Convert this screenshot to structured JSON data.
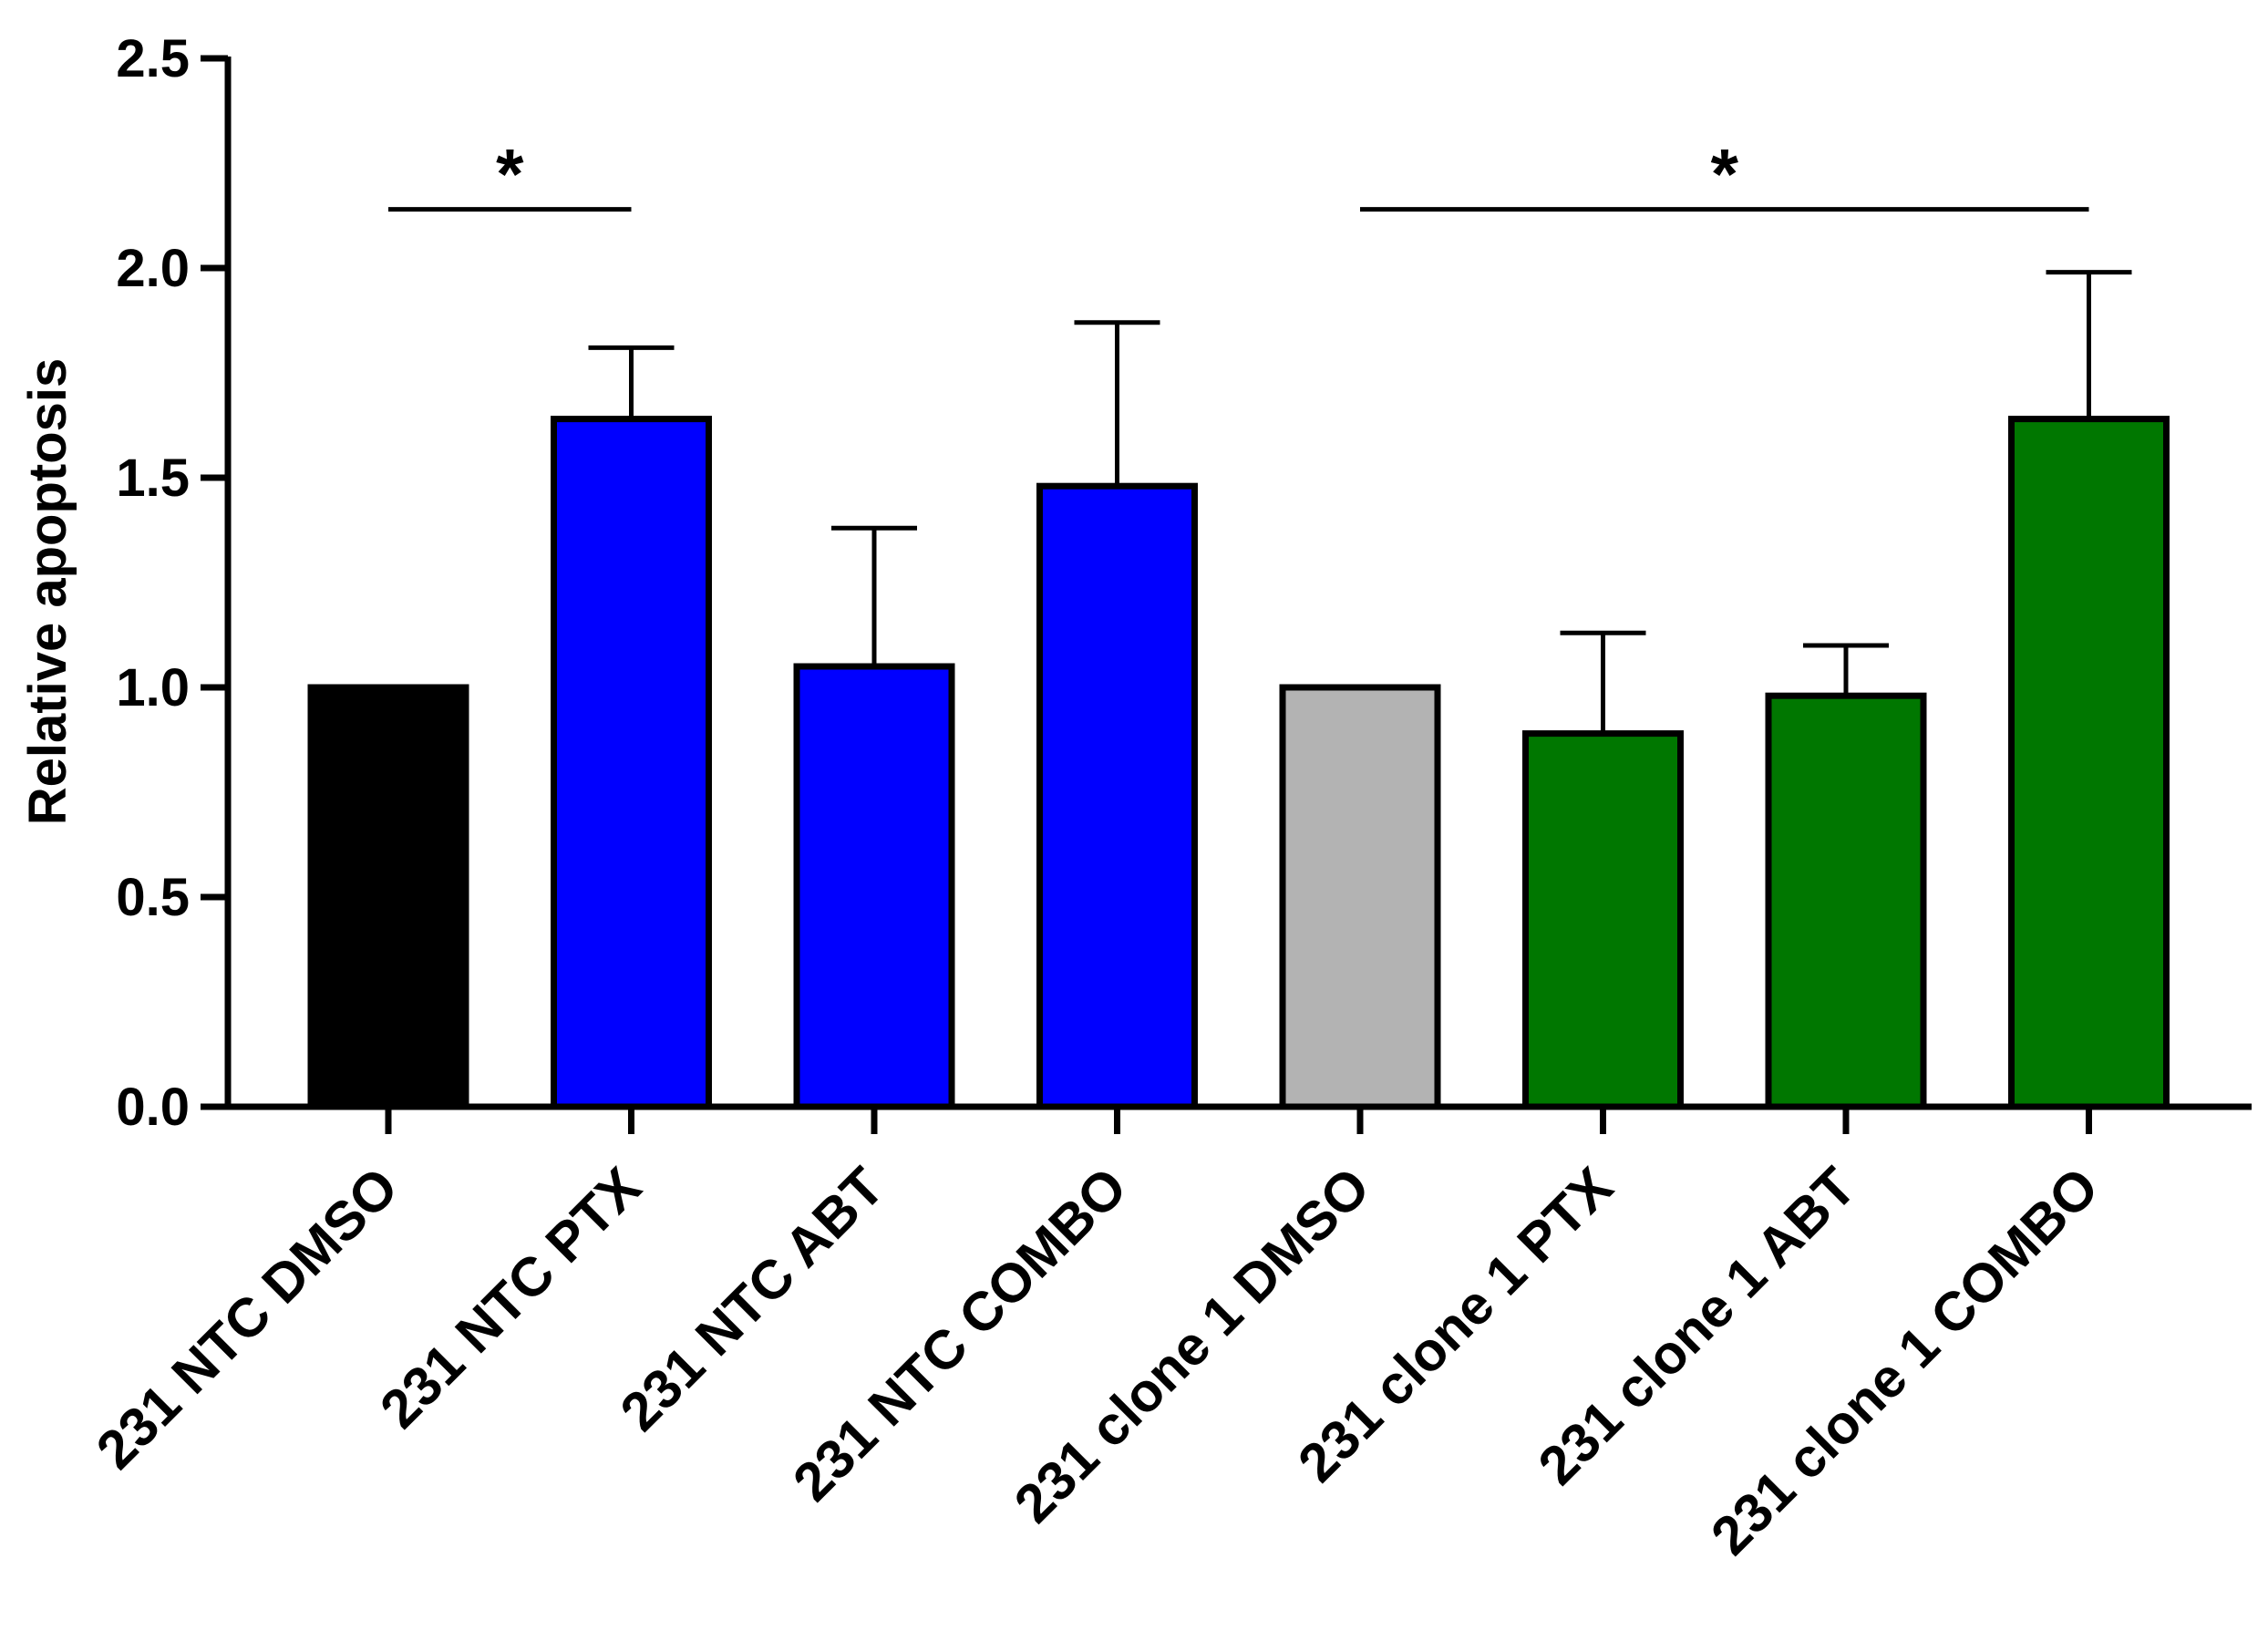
{
  "chart_data": {
    "type": "bar",
    "title": "",
    "xlabel": "",
    "ylabel": "Relative apoptosis",
    "ylim": [
      0,
      2.5
    ],
    "yticks": [
      0.0,
      0.5,
      1.0,
      1.5,
      2.0,
      2.5
    ],
    "ytick_labels": [
      "0.0",
      "0.5",
      "1.0",
      "1.5",
      "2.0",
      "2.5"
    ],
    "grid": false,
    "categories": [
      "231 NTC DMSO",
      "231 NTC PTX",
      "231 NTC ABT",
      "231 NTC COMBO",
      "231 clone 1 DMSO",
      "231 clone 1 PTX",
      "231 clone 1 ABT",
      "231 clone 1 COMBO"
    ],
    "values": [
      1.0,
      1.64,
      1.05,
      1.48,
      1.0,
      0.89,
      0.98,
      1.64
    ],
    "error_upper": [
      1.0,
      1.81,
      1.38,
      1.87,
      1.0,
      1.13,
      1.1,
      1.99
    ],
    "colors": [
      "#000000",
      "#0000ff",
      "#0000ff",
      "#0000ff",
      "#b3b3b3",
      "#007700",
      "#007700",
      "#007700"
    ],
    "significance": [
      {
        "from": 0,
        "to": 1,
        "label": "*"
      },
      {
        "from": 4,
        "to": 7,
        "label": "*"
      }
    ]
  }
}
